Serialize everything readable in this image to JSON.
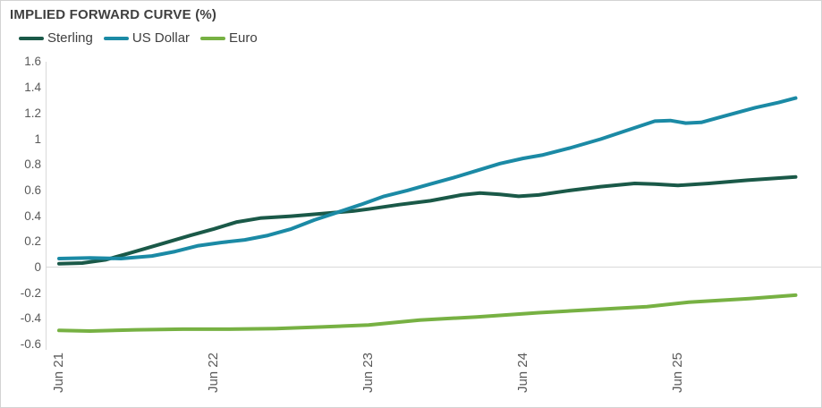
{
  "title": "IMPLIED FORWARD CURVE (%)",
  "colors": {
    "title_text": "#404040",
    "tick_text": "#595959",
    "grid": "#d9d9d9",
    "border": "#d3d3d3",
    "background": "#ffffff",
    "sterling": "#1a5948",
    "us_dollar": "#1b8aa5",
    "euro": "#77b143"
  },
  "legend": {
    "items": [
      {
        "label": "Sterling",
        "color": "#1a5948"
      },
      {
        "label": "US Dollar",
        "color": "#1b8aa5"
      },
      {
        "label": "Euro",
        "color": "#77b143"
      }
    ]
  },
  "chart_data": {
    "type": "line",
    "title": "IMPLIED FORWARD CURVE (%)",
    "xlabel": "",
    "ylabel": "",
    "ylim": [
      -0.6,
      1.6
    ],
    "grid": "zero horizontal line only, left vertical axis line",
    "legend_position": "top-left",
    "y_ticks": [
      "1.6",
      "1.4",
      "1.2",
      "1",
      "0.8",
      "0.6",
      "0.4",
      "0.2",
      "0",
      "-0.2",
      "-0.4",
      "-0.6"
    ],
    "x_ticks": [
      {
        "label": "Jun 21",
        "t": 0
      },
      {
        "label": "Jun 22",
        "t": 1
      },
      {
        "label": "Jun 23",
        "t": 2
      },
      {
        "label": "Jun 24",
        "t": 3
      },
      {
        "label": "Jun 25",
        "t": 4
      }
    ],
    "x_unit": "years since Jun 2021",
    "series": [
      {
        "name": "Sterling",
        "color": "#1a5948",
        "points": [
          [
            0,
            0.03
          ],
          [
            0.15,
            0.035
          ],
          [
            0.3,
            0.06
          ],
          [
            0.45,
            0.11
          ],
          [
            0.65,
            0.18
          ],
          [
            0.85,
            0.25
          ],
          [
            1.0,
            0.3
          ],
          [
            1.15,
            0.355
          ],
          [
            1.3,
            0.385
          ],
          [
            1.5,
            0.4
          ],
          [
            1.7,
            0.42
          ],
          [
            1.9,
            0.44
          ],
          [
            2.0,
            0.455
          ],
          [
            2.2,
            0.49
          ],
          [
            2.4,
            0.52
          ],
          [
            2.6,
            0.565
          ],
          [
            2.72,
            0.58
          ],
          [
            2.85,
            0.57
          ],
          [
            2.97,
            0.555
          ],
          [
            3.1,
            0.565
          ],
          [
            3.3,
            0.6
          ],
          [
            3.5,
            0.63
          ],
          [
            3.72,
            0.655
          ],
          [
            3.85,
            0.65
          ],
          [
            4.0,
            0.64
          ],
          [
            4.2,
            0.655
          ],
          [
            4.45,
            0.68
          ],
          [
            4.76,
            0.705
          ]
        ]
      },
      {
        "name": "US Dollar",
        "color": "#1b8aa5",
        "points": [
          [
            0,
            0.07
          ],
          [
            0.2,
            0.075
          ],
          [
            0.4,
            0.07
          ],
          [
            0.6,
            0.09
          ],
          [
            0.75,
            0.125
          ],
          [
            0.9,
            0.17
          ],
          [
            1.05,
            0.195
          ],
          [
            1.2,
            0.215
          ],
          [
            1.35,
            0.25
          ],
          [
            1.5,
            0.3
          ],
          [
            1.65,
            0.37
          ],
          [
            1.8,
            0.43
          ],
          [
            1.95,
            0.49
          ],
          [
            2.1,
            0.555
          ],
          [
            2.25,
            0.6
          ],
          [
            2.4,
            0.65
          ],
          [
            2.55,
            0.7
          ],
          [
            2.7,
            0.755
          ],
          [
            2.85,
            0.81
          ],
          [
            3.0,
            0.85
          ],
          [
            3.12,
            0.875
          ],
          [
            3.3,
            0.93
          ],
          [
            3.5,
            1.0
          ],
          [
            3.7,
            1.08
          ],
          [
            3.85,
            1.14
          ],
          [
            3.95,
            1.145
          ],
          [
            4.05,
            1.125
          ],
          [
            4.15,
            1.13
          ],
          [
            4.3,
            1.18
          ],
          [
            4.5,
            1.245
          ],
          [
            4.65,
            1.285
          ],
          [
            4.76,
            1.32
          ]
        ]
      },
      {
        "name": "Euro",
        "color": "#77b143",
        "points": [
          [
            0,
            -0.49
          ],
          [
            0.2,
            -0.495
          ],
          [
            0.5,
            -0.485
          ],
          [
            0.8,
            -0.48
          ],
          [
            1.1,
            -0.48
          ],
          [
            1.4,
            -0.475
          ],
          [
            1.7,
            -0.463
          ],
          [
            2.0,
            -0.448
          ],
          [
            2.33,
            -0.41
          ],
          [
            2.7,
            -0.385
          ],
          [
            3.1,
            -0.352
          ],
          [
            3.5,
            -0.325
          ],
          [
            3.8,
            -0.305
          ],
          [
            4.07,
            -0.27
          ],
          [
            4.46,
            -0.242
          ],
          [
            4.76,
            -0.215
          ]
        ]
      }
    ]
  }
}
